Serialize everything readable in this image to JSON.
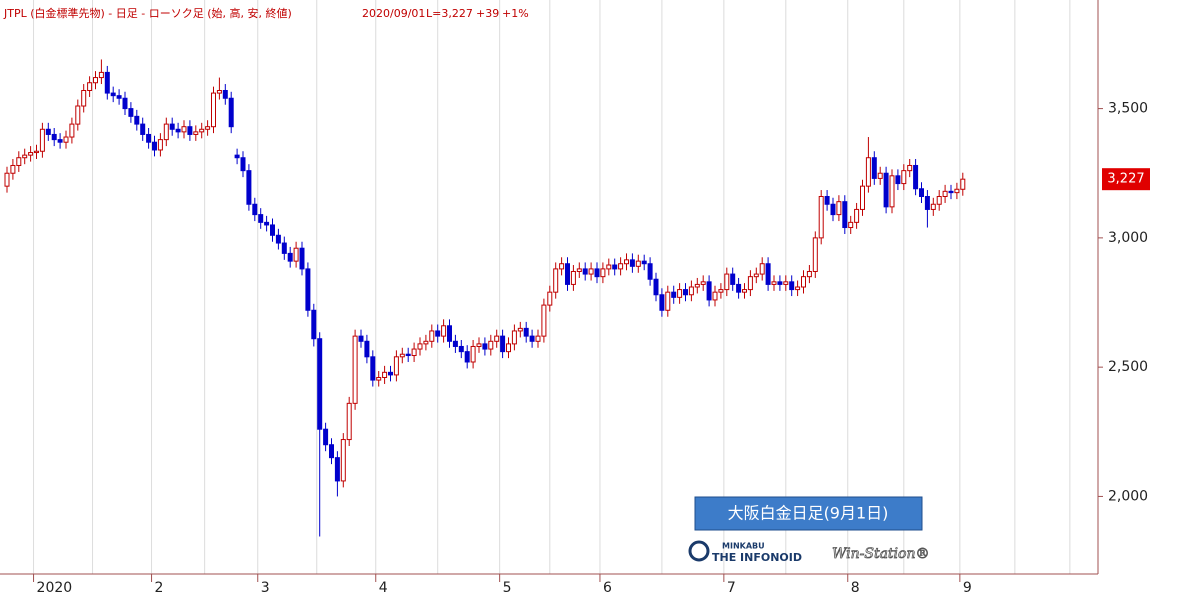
{
  "chart_data": {
    "type": "candlestick",
    "title": "JTPL (白金標準先物) - 日足 - ローソク足 (始, 高, 安, 終値)",
    "date": "2020/09/01",
    "last_label": "L=3,227",
    "change": "+39",
    "change_pct": "+1%",
    "annotation": "大阪白金日足(9月1日)",
    "logo_top": "MINKABU",
    "logo_main": "THE INFONOID",
    "logo_product": "Win-Station®",
    "up_color": "#c00000",
    "down_color": "#0000cc",
    "last_value": {
      "value": 3227,
      "label": "3,227"
    },
    "ylim": [
      1700,
      3920
    ],
    "yticks": [
      {
        "value": 2000,
        "label": "2,000"
      },
      {
        "value": 2500,
        "label": "2,500"
      },
      {
        "value": 3000,
        "label": "3,000"
      },
      {
        "value": 3500,
        "label": "3,500"
      }
    ],
    "categories": [
      null,
      null,
      null,
      null,
      null,
      "2020",
      null,
      null,
      null,
      null,
      null,
      null,
      null,
      null,
      null,
      null,
      null,
      null,
      null,
      null,
      null,
      null,
      null,
      null,
      null,
      "2",
      null,
      null,
      null,
      null,
      null,
      null,
      null,
      null,
      null,
      null,
      null,
      null,
      null,
      null,
      null,
      null,
      null,
      "3",
      null,
      null,
      null,
      null,
      null,
      null,
      null,
      null,
      null,
      null,
      null,
      null,
      null,
      null,
      null,
      null,
      null,
      null,
      null,
      "4",
      null,
      null,
      null,
      null,
      null,
      null,
      null,
      null,
      null,
      null,
      null,
      null,
      null,
      null,
      null,
      null,
      null,
      null,
      null,
      null,
      "5",
      null,
      null,
      null,
      null,
      null,
      null,
      null,
      null,
      null,
      null,
      null,
      null,
      null,
      null,
      null,
      null,
      "6",
      null,
      null,
      null,
      null,
      null,
      null,
      null,
      null,
      null,
      null,
      null,
      null,
      null,
      null,
      null,
      null,
      null,
      null,
      null,
      null,
      "7",
      null,
      null,
      null,
      null,
      null,
      null,
      null,
      null,
      null,
      null,
      null,
      null,
      null,
      null,
      null,
      null,
      null,
      null,
      null,
      null,
      "8",
      null,
      null,
      null,
      null,
      null,
      null,
      null,
      null,
      null,
      null,
      null,
      null,
      null,
      null,
      null,
      null,
      null,
      null,
      "9"
    ],
    "open": [
      3200,
      3250,
      3280,
      3310,
      3320,
      3330,
      3335,
      3420,
      3400,
      3380,
      3370,
      3390,
      3440,
      3510,
      3570,
      3600,
      3620,
      3640,
      3560,
      3550,
      3540,
      3500,
      3470,
      3440,
      3400,
      3370,
      3340,
      3380,
      3440,
      3420,
      3410,
      3430,
      3400,
      3410,
      3420,
      3430,
      3560,
      3570,
      3540,
      3320,
      3310,
      3260,
      3130,
      3090,
      3060,
      3050,
      3010,
      2980,
      2940,
      2910,
      2960,
      2880,
      2720,
      2610,
      2260,
      2200,
      2150,
      2060,
      2220,
      2360,
      2620,
      2600,
      2540,
      2450,
      2460,
      2480,
      2470,
      2540,
      2550,
      2545,
      2570,
      2590,
      2600,
      2640,
      2620,
      2660,
      2600,
      2580,
      2560,
      2520,
      2580,
      2590,
      2570,
      2600,
      2620,
      2560,
      2590,
      2640,
      2650,
      2620,
      2600,
      2620,
      2740,
      2790,
      2880,
      2900,
      2820,
      2870,
      2880,
      2860,
      2880,
      2850,
      2880,
      2895,
      2880,
      2900,
      2915,
      2890,
      2910,
      2900,
      2840,
      2780,
      2720,
      2790,
      2770,
      2800,
      2780,
      2810,
      2820,
      2830,
      2760,
      2790,
      2800,
      2860,
      2820,
      2790,
      2800,
      2850,
      2860,
      2900,
      2820,
      2830,
      2820,
      2830,
      2800,
      2810,
      2850,
      2870,
      3000,
      3160,
      3130,
      3090,
      3140,
      3040,
      3060,
      3110,
      3200,
      3310,
      3230,
      3250,
      3120,
      3240,
      3210,
      3260,
      3280,
      3190,
      3160,
      3110,
      3130,
      3160,
      3180,
      3175,
      3188
    ],
    "high": [
      3275,
      3305,
      3335,
      3345,
      3355,
      3360,
      3445,
      3445,
      3425,
      3405,
      3415,
      3465,
      3535,
      3595,
      3625,
      3645,
      3690,
      3665,
      3585,
      3575,
      3565,
      3525,
      3495,
      3465,
      3425,
      3395,
      3405,
      3465,
      3465,
      3445,
      3455,
      3455,
      3435,
      3445,
      3455,
      3585,
      3620,
      3595,
      3565,
      3345,
      3335,
      3285,
      3155,
      3115,
      3085,
      3075,
      3035,
      3005,
      2965,
      2985,
      2985,
      2905,
      2745,
      2635,
      2285,
      2225,
      2175,
      2245,
      2385,
      2645,
      2645,
      2625,
      2565,
      2485,
      2505,
      2505,
      2565,
      2575,
      2575,
      2595,
      2615,
      2625,
      2665,
      2665,
      2685,
      2685,
      2625,
      2605,
      2585,
      2605,
      2615,
      2615,
      2625,
      2645,
      2645,
      2615,
      2665,
      2675,
      2675,
      2645,
      2645,
      2765,
      2815,
      2905,
      2925,
      2925,
      2895,
      2905,
      2905,
      2905,
      2905,
      2905,
      2920,
      2920,
      2925,
      2940,
      2940,
      2935,
      2935,
      2925,
      2865,
      2805,
      2815,
      2815,
      2825,
      2825,
      2835,
      2845,
      2855,
      2855,
      2815,
      2825,
      2885,
      2885,
      2845,
      2825,
      2875,
      2885,
      2925,
      2925,
      2855,
      2855,
      2855,
      2855,
      2835,
      2875,
      2895,
      3025,
      3185,
      3185,
      3155,
      3165,
      3165,
      3085,
      3135,
      3225,
      3390,
      3335,
      3275,
      3275,
      3265,
      3265,
      3285,
      3305,
      3305,
      3215,
      3185,
      3155,
      3185,
      3205,
      3205,
      3213,
      3252
    ],
    "low": [
      3175,
      3225,
      3255,
      3285,
      3295,
      3305,
      3310,
      3375,
      3355,
      3345,
      3345,
      3365,
      3415,
      3485,
      3545,
      3575,
      3595,
      3535,
      3525,
      3515,
      3475,
      3445,
      3415,
      3375,
      3345,
      3315,
      3315,
      3355,
      3395,
      3385,
      3385,
      3375,
      3375,
      3385,
      3395,
      3405,
      3535,
      3515,
      3405,
      3285,
      3235,
      3105,
      3065,
      3035,
      3025,
      2985,
      2955,
      2915,
      2885,
      2885,
      2855,
      2695,
      2580,
      1845,
      2175,
      2125,
      2000,
      2035,
      2195,
      2335,
      2575,
      2515,
      2425,
      2425,
      2435,
      2445,
      2445,
      2515,
      2520,
      2520,
      2545,
      2565,
      2575,
      2595,
      2595,
      2575,
      2555,
      2535,
      2495,
      2495,
      2555,
      2545,
      2545,
      2575,
      2535,
      2535,
      2565,
      2615,
      2595,
      2575,
      2575,
      2595,
      2715,
      2765,
      2855,
      2795,
      2795,
      2845,
      2835,
      2835,
      2825,
      2825,
      2855,
      2855,
      2855,
      2875,
      2865,
      2865,
      2875,
      2815,
      2755,
      2695,
      2695,
      2745,
      2745,
      2755,
      2755,
      2785,
      2795,
      2735,
      2735,
      2765,
      2775,
      2795,
      2765,
      2765,
      2775,
      2825,
      2835,
      2795,
      2795,
      2795,
      2795,
      2775,
      2775,
      2785,
      2825,
      2845,
      2975,
      3105,
      3065,
      3065,
      3015,
      3015,
      3035,
      3085,
      3175,
      3205,
      3205,
      3095,
      3095,
      3185,
      3185,
      3235,
      3165,
      3135,
      3040,
      3085,
      3105,
      3135,
      3150,
      3150,
      3163
    ],
    "close": [
      3250,
      3280,
      3310,
      3320,
      3330,
      3335,
      3420,
      3400,
      3380,
      3370,
      3390,
      3440,
      3510,
      3570,
      3600,
      3620,
      3640,
      3560,
      3550,
      3540,
      3500,
      3470,
      3440,
      3400,
      3370,
      3340,
      3380,
      3440,
      3420,
      3410,
      3430,
      3400,
      3410,
      3420,
      3430,
      3560,
      3570,
      3540,
      3430,
      3310,
      3260,
      3130,
      3090,
      3060,
      3050,
      3010,
      2980,
      2940,
      2910,
      2960,
      2880,
      2720,
      2610,
      2260,
      2200,
      2150,
      2060,
      2220,
      2360,
      2620,
      2600,
      2540,
      2450,
      2460,
      2480,
      2470,
      2540,
      2550,
      2545,
      2570,
      2590,
      2600,
      2640,
      2620,
      2660,
      2600,
      2580,
      2560,
      2520,
      2580,
      2590,
      2570,
      2600,
      2620,
      2560,
      2590,
      2640,
      2650,
      2620,
      2600,
      2620,
      2740,
      2790,
      2880,
      2900,
      2820,
      2870,
      2880,
      2860,
      2880,
      2850,
      2880,
      2895,
      2880,
      2900,
      2915,
      2890,
      2910,
      2900,
      2840,
      2780,
      2720,
      2790,
      2770,
      2800,
      2780,
      2810,
      2820,
      2830,
      2760,
      2790,
      2800,
      2860,
      2820,
      2790,
      2800,
      2850,
      2860,
      2900,
      2820,
      2830,
      2820,
      2830,
      2800,
      2810,
      2850,
      2870,
      3000,
      3160,
      3130,
      3090,
      3140,
      3040,
      3060,
      3110,
      3200,
      3310,
      3230,
      3250,
      3120,
      3240,
      3210,
      3260,
      3280,
      3190,
      3160,
      3110,
      3130,
      3160,
      3180,
      3175,
      3188,
      3227
    ]
  }
}
